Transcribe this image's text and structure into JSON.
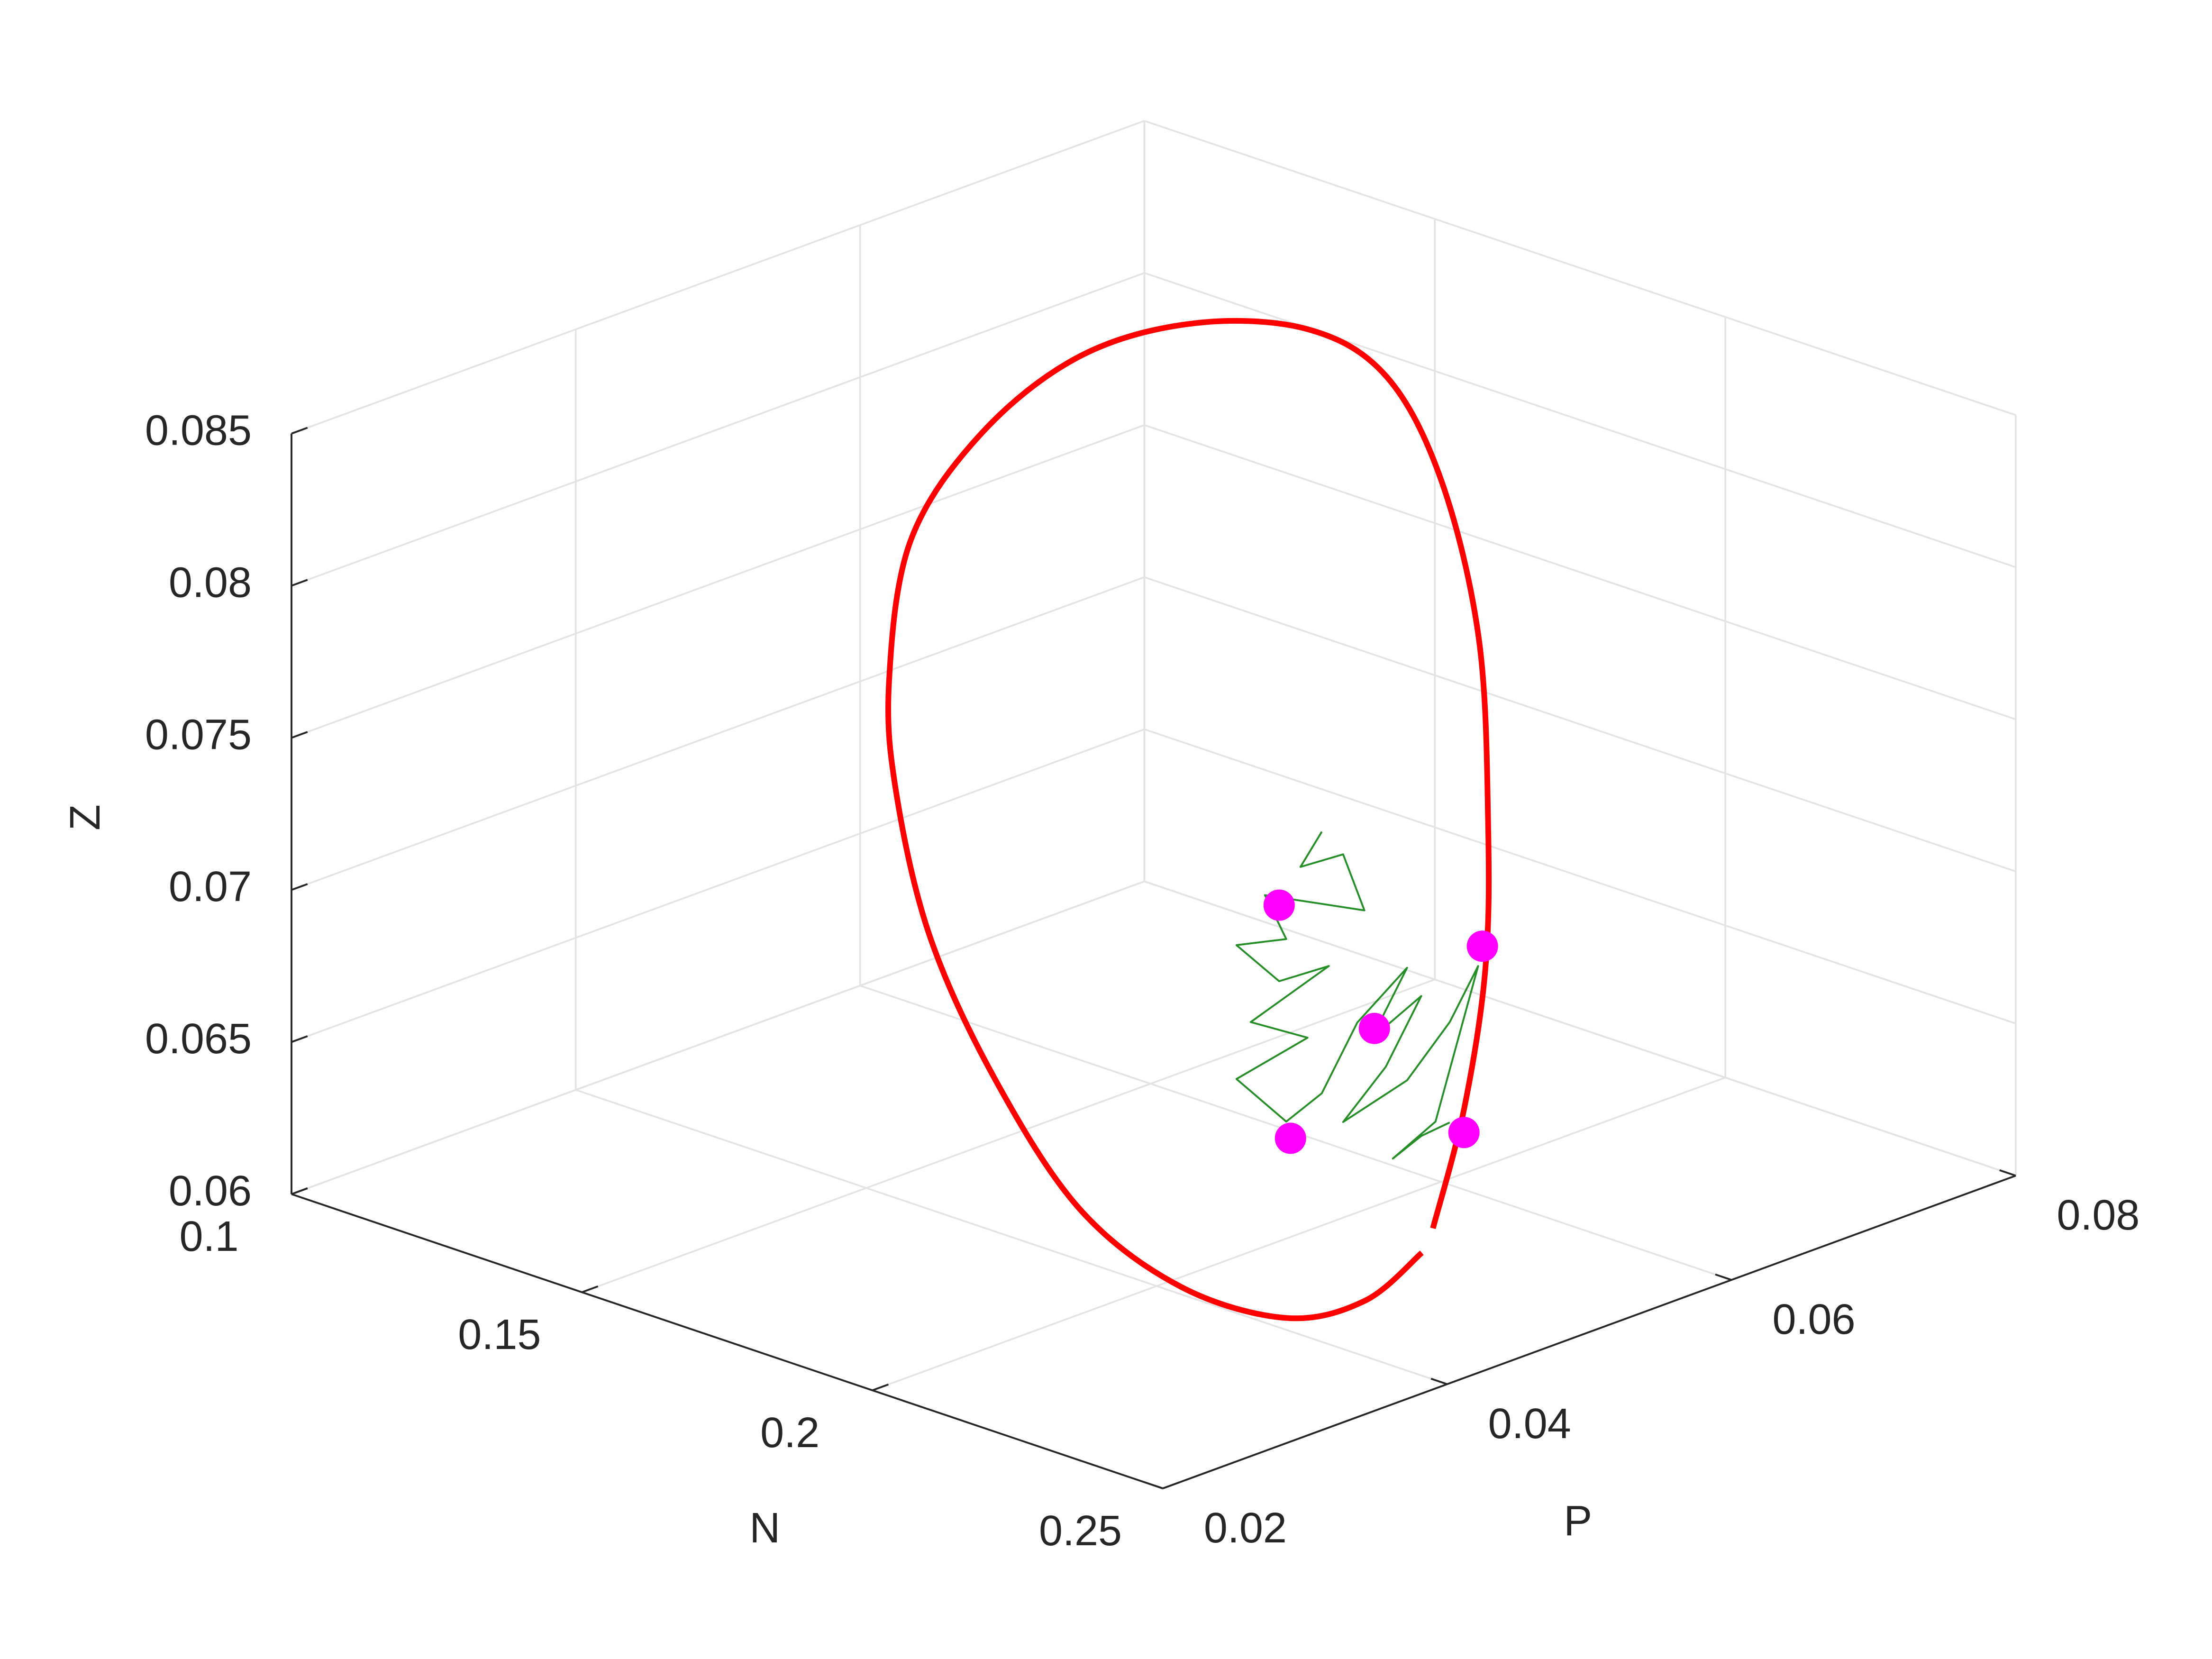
{
  "chart_data": {
    "type": "line3d",
    "xlabel": "N",
    "ylabel": "P",
    "zlabel": "Z",
    "xlim": [
      0.1,
      0.25
    ],
    "xticks": [
      0.1,
      0.15,
      0.2,
      0.25
    ],
    "ylim": [
      0.02,
      0.08
    ],
    "yticks": [
      0.02,
      0.04,
      0.06,
      0.08
    ],
    "zlim": [
      0.06,
      0.085
    ],
    "zticks": [
      0.06,
      0.065,
      0.07,
      0.075,
      0.08,
      0.085
    ],
    "grid": true,
    "series": [
      {
        "mode": "line",
        "color": "#ff0000",
        "line_width": 4,
        "x": [
          0.227,
          0.216,
          0.203,
          0.19,
          0.1735,
          0.159,
          0.15,
          0.1455,
          0.145,
          0.148,
          0.155,
          0.1645,
          0.1774,
          0.1878,
          0.2005,
          0.2134,
          0.225,
          0.232,
          0.235,
          0.2334,
          0.229
        ],
        "y": [
          0.0484,
          0.0551,
          0.0619,
          0.0674,
          0.0735,
          0.0768,
          0.0766,
          0.0729,
          0.0651,
          0.0559,
          0.0461,
          0.0372,
          0.0304,
          0.0267,
          0.0239,
          0.0232,
          0.0244,
          0.0286,
          0.0348,
          0.041,
          0.0468
        ],
        "z": [
          0.0622,
          0.0643,
          0.0669,
          0.0699,
          0.0738,
          0.0775,
          0.0804,
          0.0823,
          0.0838,
          0.0845,
          0.0841,
          0.0827,
          0.08,
          0.0776,
          0.0742,
          0.0705,
          0.0668,
          0.064,
          0.0621,
          0.0615,
          0.0618
        ]
      },
      {
        "mode": "line",
        "color": "#007a00",
        "line_width": 1.3,
        "x": [
          0.19,
          0.19,
          0.19,
          0.19,
          0.19,
          0.19,
          0.19,
          0.19,
          0.19,
          0.19,
          0.19,
          0.19,
          0.19,
          0.19,
          0.19,
          0.19,
          0.19,
          0.19,
          0.19,
          0.19,
          0.19,
          0.19,
          0.19,
          0.19,
          0.19,
          0.19,
          0.19
        ],
        "y": [
          0.0557,
          0.0542,
          0.0572,
          0.0587,
          0.0517,
          0.0532,
          0.0497,
          0.0527,
          0.0562,
          0.0507,
          0.0547,
          0.0497,
          0.0532,
          0.0557,
          0.0582,
          0.0617,
          0.0592,
          0.0627,
          0.0602,
          0.0572,
          0.0617,
          0.0647,
          0.0667,
          0.0637,
          0.0607,
          0.0627,
          0.0647
        ],
        "z": [
          0.0716,
          0.0707,
          0.0706,
          0.0685,
          0.0702,
          0.0685,
          0.0689,
          0.0672,
          0.0671,
          0.0662,
          0.065,
          0.0645,
          0.0625,
          0.063,
          0.0649,
          0.0661,
          0.0642,
          0.065,
          0.0631,
          0.0618,
          0.0624,
          0.0638,
          0.0653,
          0.0607,
          0.06,
          0.0604,
          0.0605
        ]
      },
      {
        "mode": "markers",
        "color": "#ff00ff",
        "marker_size": 11,
        "x": [
          0.19,
          0.19,
          0.19,
          0.19,
          0.19
        ],
        "y": [
          0.0527,
          0.067,
          0.0594,
          0.0535,
          0.0657
        ],
        "z": [
          0.0697,
          0.0659,
          0.0645,
          0.0619,
          0.06
        ]
      }
    ]
  }
}
